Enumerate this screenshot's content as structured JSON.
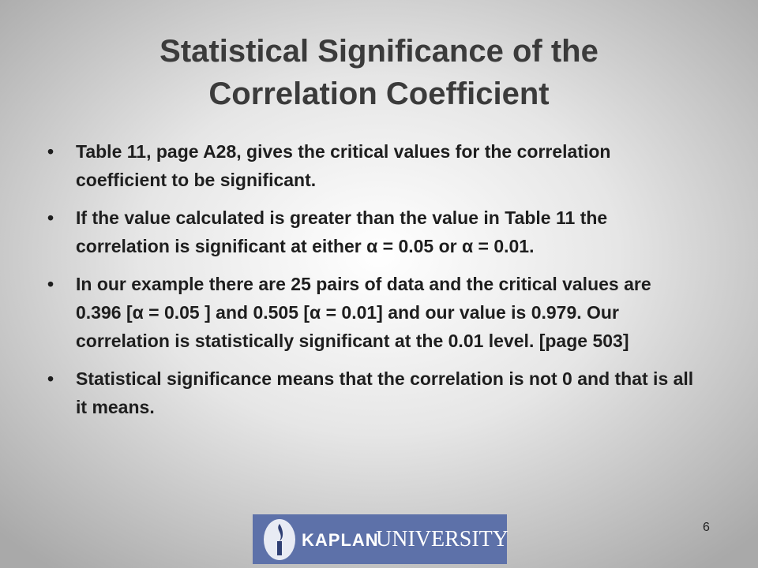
{
  "slide": {
    "title_lines": [
      "Statistical Significance of the",
      "Correlation Coefficient"
    ],
    "bullets": [
      "Table 11, page A28, gives the critical values for the correlation coefficient to be significant.",
      "If the value calculated is greater than the value in Table 11 the correlation is significant at either α = 0.05 or α = 0.01.",
      "In our example there are 25 pairs of data and the critical values are 0.396 [α = 0.05 ] and 0.505 [α = 0.01] and our value is 0.979. Our correlation is statistically significant at the 0.01 level. [page 503]",
      "Statistical significance means that the correlation is not 0 and that is all it means."
    ],
    "page_number": "6",
    "logo": {
      "brand": "KAPLAN",
      "name": "UNIVERSITY"
    }
  }
}
